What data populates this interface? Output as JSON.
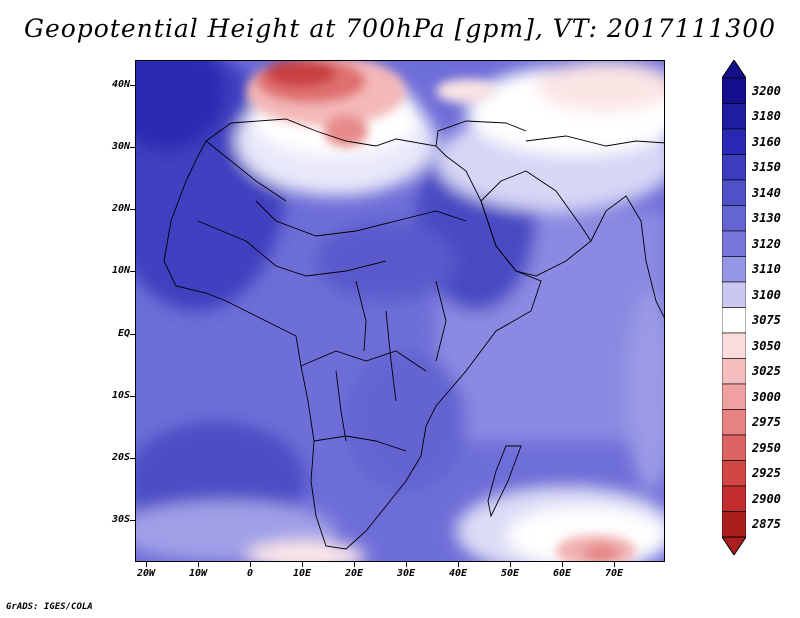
{
  "title": "Geopotential Height at 700hPa [gpm], VT: 2017111300",
  "credit": "GrADS: IGES/COLA",
  "axes": {
    "lat_labels": [
      "40N",
      "30N",
      "20N",
      "10N",
      "EQ",
      "10S",
      "20S",
      "30S"
    ],
    "lat_values": [
      40,
      30,
      20,
      10,
      0,
      -10,
      -20,
      -30
    ],
    "lon_labels": [
      "20W",
      "10W",
      "0",
      "10E",
      "20E",
      "30E",
      "40E",
      "50E",
      "60E",
      "70E"
    ],
    "lon_values": [
      -20,
      -10,
      0,
      10,
      20,
      30,
      40,
      50,
      60,
      70
    ],
    "lon_range": [
      -22,
      80
    ],
    "lat_range": [
      -37,
      45
    ]
  },
  "colorbar": {
    "labels": [
      "3200",
      "3180",
      "3160",
      "3150",
      "3140",
      "3130",
      "3120",
      "3110",
      "3100",
      "3075",
      "3050",
      "3025",
      "3000",
      "2975",
      "2950",
      "2925",
      "2900",
      "2875"
    ],
    "colors": [
      "#140f8c",
      "#1e1ea0",
      "#2828b4",
      "#3c3cc0",
      "#5050c8",
      "#6464d2",
      "#7878dc",
      "#9696e6",
      "#c8c8f0",
      "#ffffff",
      "#fadcdc",
      "#f5bebe",
      "#f0a0a0",
      "#e68282",
      "#dc6464",
      "#d24646",
      "#c32d2d",
      "#aa1e1e"
    ],
    "top_color": "#140f8c",
    "bottom_color": "#aa1e1e"
  }
}
